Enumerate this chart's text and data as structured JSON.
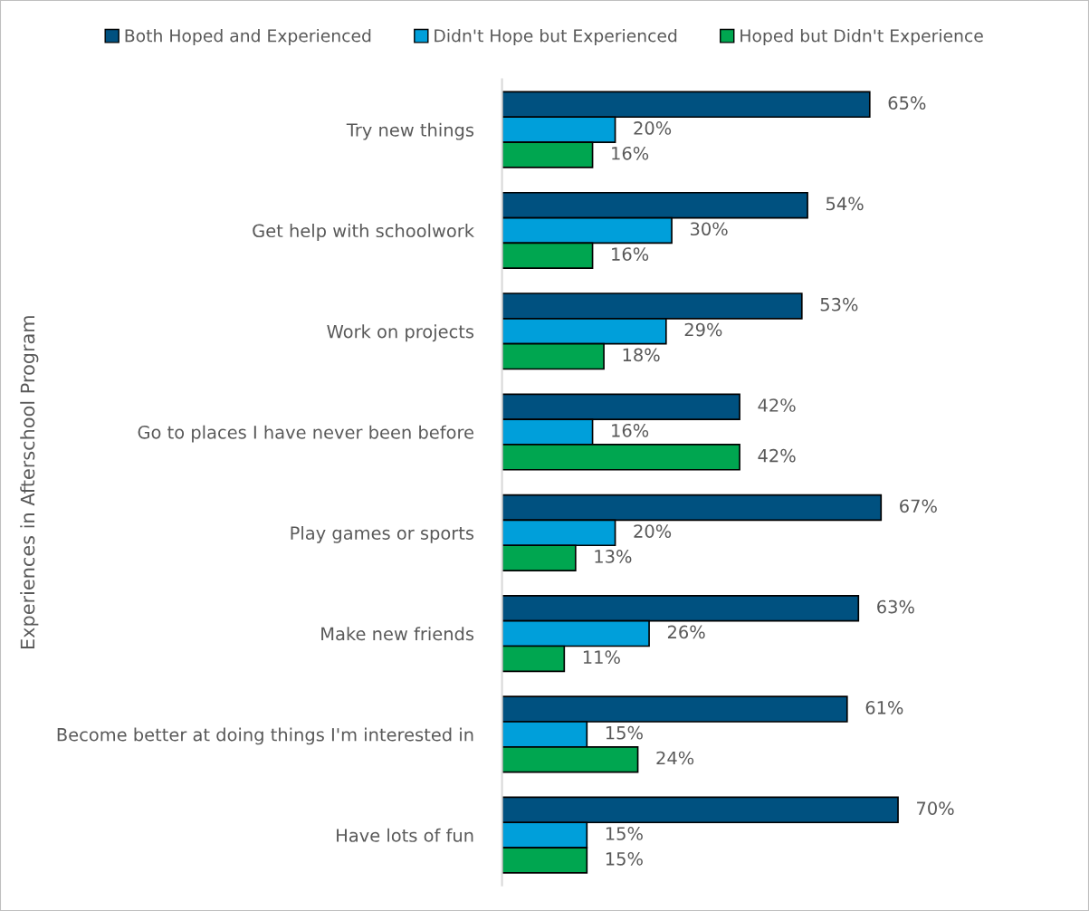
{
  "chart_data": {
    "type": "bar",
    "orientation": "horizontal",
    "ylabel": "Experiences in Afterschool Program",
    "legend": "top",
    "grid": false,
    "categories": [
      "Try new things",
      "Get help with schoolwork",
      "Work on projects",
      "Go to places I have never been before",
      "Play games or sports",
      "Make new friends",
      "Become better at doing things I'm interested in",
      "Have lots of fun"
    ],
    "series": [
      {
        "name": "Both Hoped and Experienced",
        "color": "#005180",
        "values": [
          65,
          54,
          53,
          42,
          67,
          63,
          61,
          70
        ],
        "value_labels": [
          "65%",
          "54%",
          "53%",
          "42%",
          "67%",
          "63%",
          "61%",
          "70%"
        ]
      },
      {
        "name": "Didn't Hope but Experienced",
        "color": "#009fda",
        "values": [
          20,
          30,
          29,
          16,
          20,
          26,
          15,
          15
        ],
        "value_labels": [
          "20%",
          "30%",
          "29%",
          "16%",
          "20%",
          "26%",
          "15%",
          "15%"
        ]
      },
      {
        "name": "Hoped but Didn't Experience",
        "color": "#00a650",
        "values": [
          16,
          16,
          18,
          42,
          13,
          11,
          24,
          15
        ],
        "value_labels": [
          "16%",
          "16%",
          "18%",
          "42%",
          "13%",
          "11%",
          "24%",
          "15%"
        ]
      }
    ]
  }
}
